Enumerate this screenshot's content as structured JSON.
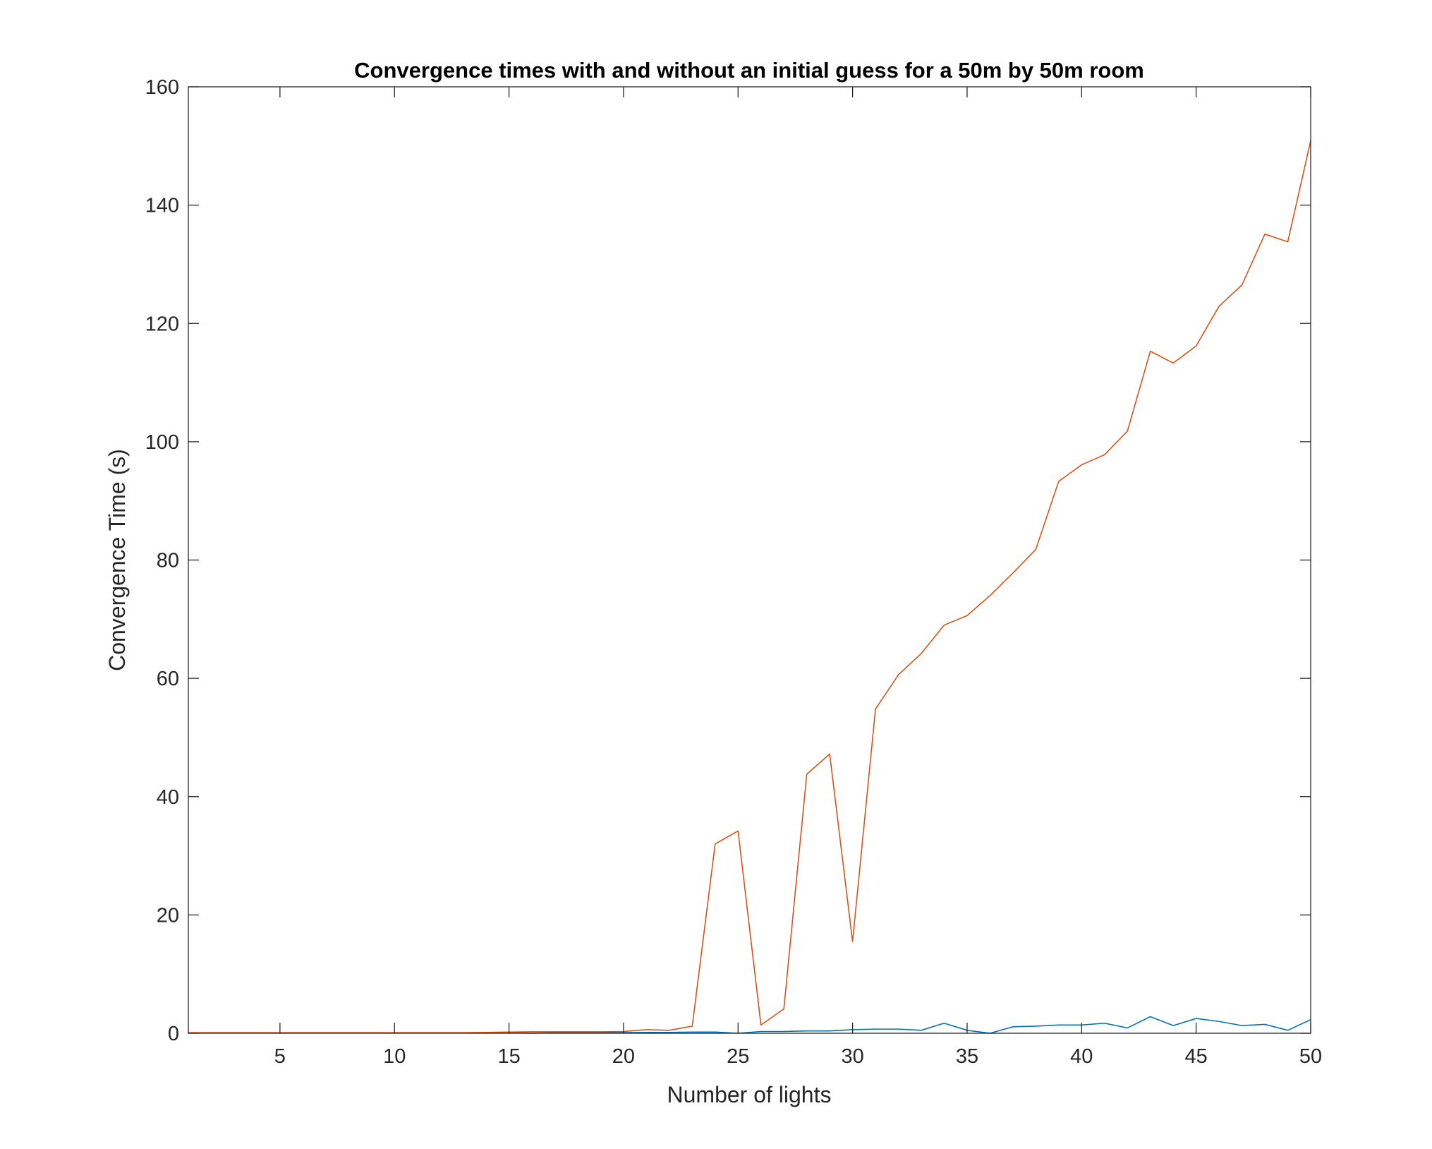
{
  "chart_data": {
    "type": "line",
    "title": "Convergence times with and without an initial guess for a 50m by 50m room",
    "xlabel": "Number of lights",
    "ylabel": "Convergence Time (s)",
    "xlim": [
      1,
      50
    ],
    "ylim": [
      0,
      160
    ],
    "xticks": [
      5,
      10,
      15,
      20,
      25,
      30,
      35,
      40,
      45,
      50
    ],
    "yticks": [
      0,
      20,
      40,
      60,
      80,
      100,
      120,
      140,
      160
    ],
    "grid": false,
    "legend": "none",
    "x": [
      1,
      2,
      3,
      4,
      5,
      6,
      7,
      8,
      9,
      10,
      11,
      12,
      13,
      14,
      15,
      16,
      17,
      18,
      19,
      20,
      21,
      22,
      23,
      24,
      25,
      26,
      27,
      28,
      29,
      30,
      31,
      32,
      33,
      34,
      35,
      36,
      37,
      38,
      39,
      40,
      41,
      42,
      43,
      44,
      45,
      46,
      47,
      48,
      49,
      50
    ],
    "series": [
      {
        "color": "#0072BD",
        "values": [
          0.05,
          0.05,
          0.05,
          0.05,
          0.05,
          0.05,
          0.05,
          0.05,
          0.05,
          0.05,
          0.05,
          0.05,
          0.05,
          0.05,
          0.1,
          0.0,
          0.1,
          0.1,
          0.1,
          0.1,
          0.15,
          0.15,
          0.2,
          0.2,
          0.0,
          0.3,
          0.3,
          0.4,
          0.4,
          0.6,
          0.7,
          0.7,
          0.5,
          1.7,
          0.5,
          0.0,
          1.1,
          1.2,
          1.4,
          1.4,
          1.7,
          0.9,
          2.8,
          1.3,
          2.5,
          2.0,
          1.3,
          1.5,
          0.5,
          2.3
        ]
      },
      {
        "color": "#D95319",
        "values": [
          0.1,
          0.1,
          0.1,
          0.1,
          0.1,
          0.1,
          0.1,
          0.1,
          0.1,
          0.1,
          0.1,
          0.1,
          0.1,
          0.15,
          0.2,
          0.25,
          0.25,
          0.25,
          0.25,
          0.3,
          0.6,
          0.5,
          1.2,
          32.0,
          34.2,
          1.4,
          4.1,
          43.8,
          47.2,
          15.5,
          54.8,
          60.6,
          64.2,
          69.0,
          70.6,
          74.0,
          77.8,
          81.8,
          93.3,
          96.1,
          97.8,
          101.8,
          115.3,
          113.3,
          116.2,
          122.9,
          126.5,
          135.1,
          133.8,
          150.9
        ]
      }
    ]
  }
}
